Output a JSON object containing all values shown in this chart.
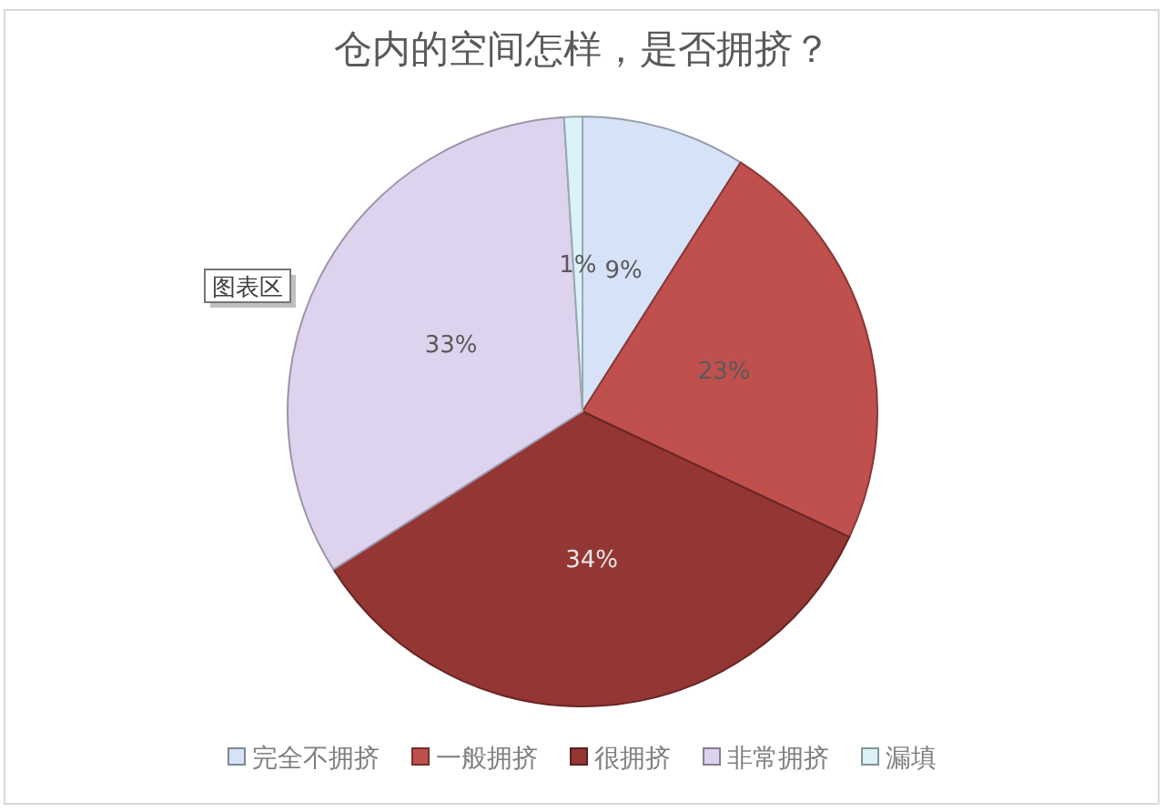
{
  "chart_data": {
    "type": "pie",
    "title": "仓内的空间怎样，是否拥挤？",
    "categories": [
      "完全不拥挤",
      "一般拥挤",
      "很拥挤",
      "非常拥挤",
      "漏填"
    ],
    "values": [
      9,
      23,
      34,
      33,
      1
    ],
    "colors": [
      "#d5e2f7",
      "#c0504d",
      "#943634",
      "#ddd3ee",
      "#dbf3f8"
    ],
    "value_labels": [
      "9%",
      "23%",
      "34%",
      "33%",
      "1%"
    ],
    "legend": "bottom",
    "annotations": [
      "图表区"
    ]
  }
}
